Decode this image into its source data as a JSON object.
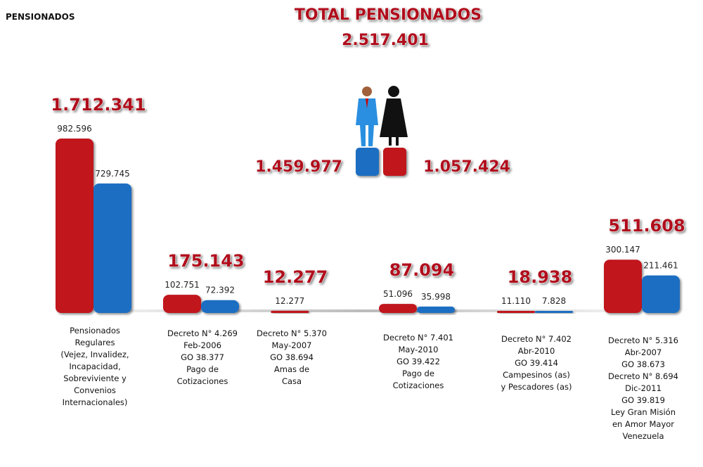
{
  "chart_data": {
    "type": "bar",
    "corner_label": "PENSIONADOS",
    "title": "TOTAL PENSIONADOS",
    "subtitle": "2.517.401",
    "summary_labels": [
      "1.459.977",
      "1.057.424"
    ],
    "categories": [
      "Pensionados\nRegulares\n(Vejez, Invalidez,\nIncapacidad,\nSobreviviente y\nConvenios\nInternacionales)",
      "Decreto N° 4.269\nFeb-2006\nGO 38.377\nPago de\nCotizaciones",
      "Decreto N° 5.370\nMay-2007\nGO 38.694\nAmas de\nCasa",
      "Decreto N° 7.401\nMay-2010\nGO 39.422\nPago de\nCotizaciones",
      "Decreto N° 7.402\nAbr-2010\nGO 39.414\nCampesinos (as)\ny Pescadores (as)",
      "Decreto N° 5.316\nAbr-2007\nGO 38.673\nDecreto N° 8.694\nDic-2011\nGO 39.819\nLey Gran Misión\nen Amor Mayor\nVenezuela"
    ],
    "group_totals": [
      "1.712.341",
      "175.143",
      "12.277",
      "87.094",
      "18.938",
      "511.608"
    ],
    "series": [
      {
        "color": "#c0121c",
        "values": [
          982596,
          102751,
          12277,
          51096,
          11110,
          300147
        ],
        "value_labels": [
          "982.596",
          "102.751",
          "12.277",
          "51.096",
          "11.110",
          "300.147"
        ]
      },
      {
        "color": "#1f6ec2",
        "values": [
          729745,
          72392,
          null,
          35998,
          7828,
          211461
        ],
        "value_labels": [
          "729.745",
          "72.392",
          null,
          "35.998",
          "7.828",
          "211.461"
        ]
      }
    ]
  }
}
